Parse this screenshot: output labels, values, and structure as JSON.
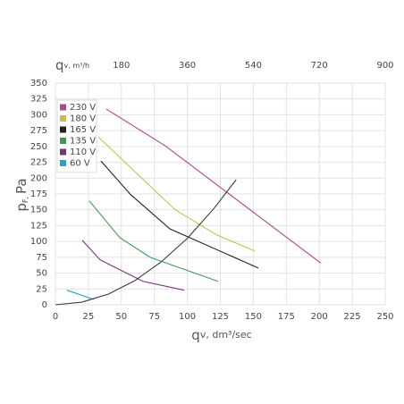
{
  "chart_data": {
    "type": "line",
    "x_label": [
      "q",
      "v, dm³/sec"
    ],
    "y_label": [
      "p",
      "F,",
      "Pa"
    ],
    "x2_label": [
      "q",
      "v, m³/h"
    ],
    "xlim": [
      0,
      250
    ],
    "xticks": [
      0,
      25,
      50,
      75,
      100,
      125,
      150,
      175,
      200,
      225,
      250
    ],
    "ylim": [
      0,
      350
    ],
    "yticks": [
      0,
      25,
      50,
      75,
      100,
      125,
      150,
      175,
      200,
      225,
      250,
      275,
      300,
      325,
      350
    ],
    "x2lim": [
      0,
      900
    ],
    "x2ticks": [
      180,
      360,
      540,
      720,
      900
    ],
    "grid": true,
    "legend": "upper left",
    "series": [
      {
        "name": "230 V",
        "color": "#b0488a",
        "x": [
          38.6,
          83.3,
          201
        ],
        "values": [
          309,
          251,
          66
        ]
      },
      {
        "name": "180 V",
        "color": "#cbbd4c",
        "x": [
          32.5,
          90.8,
          122.6,
          151
        ],
        "values": [
          265,
          150,
          110,
          85
        ]
      },
      {
        "name": "165 V",
        "color": "#222222",
        "x": [
          34.5,
          57,
          86.7,
          153.8
        ],
        "values": [
          227,
          174,
          120,
          58
        ]
      },
      {
        "name": "135 V",
        "color": "#3f9a55",
        "x": [
          25.7,
          48.8,
          71.8,
          123.3
        ],
        "values": [
          164,
          106,
          75,
          37
        ]
      },
      {
        "name": "110 V",
        "color": "#7b2f7f",
        "x": [
          20.3,
          33.9,
          66.4,
          97.6
        ],
        "values": [
          102,
          71,
          37,
          23
        ]
      },
      {
        "name": "60 V",
        "color": "#1aa7c8",
        "x": [
          8.8,
          29.1
        ],
        "values": [
          23,
          8.5
        ]
      },
      {
        "color": "#3a3a3a",
        "x": [
          0,
          20,
          40,
          60,
          80,
          100,
          120,
          137
        ],
        "values": [
          0,
          4.2,
          16.8,
          37.9,
          67.4,
          105,
          151.6,
          197.6
        ]
      }
    ]
  }
}
